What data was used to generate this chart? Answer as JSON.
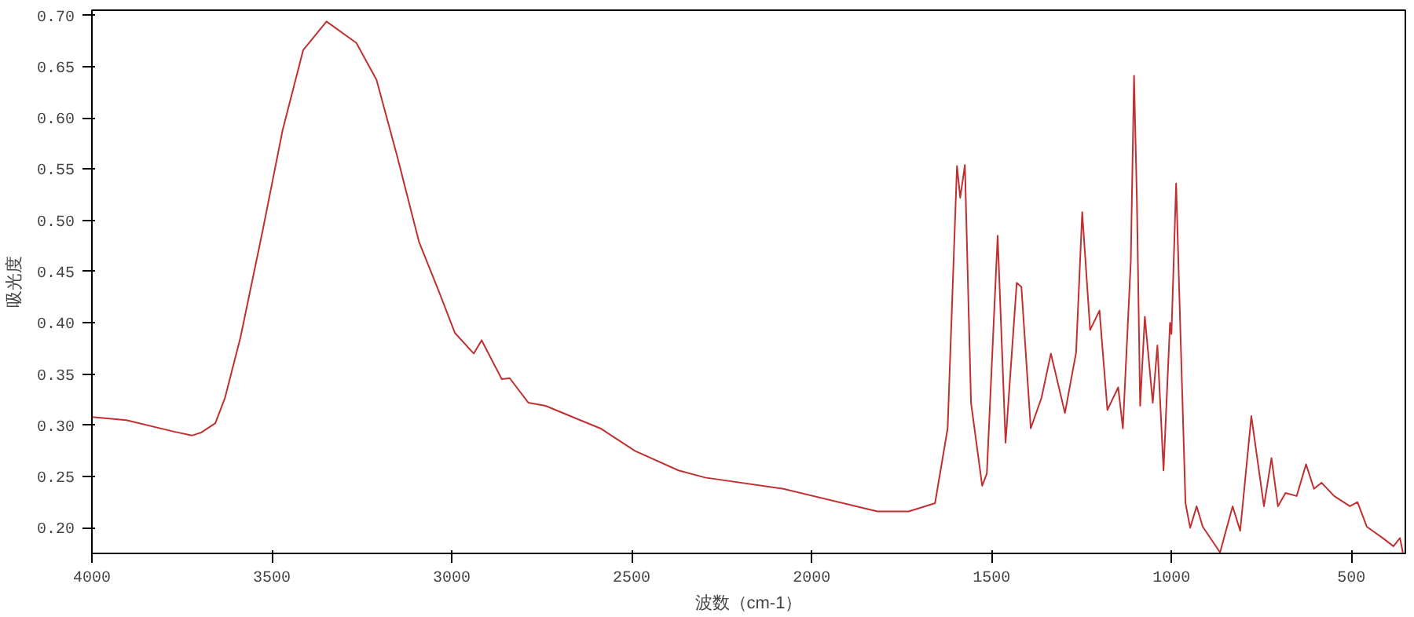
{
  "chart_data": {
    "type": "line",
    "xlabel": "波数（cm-1）",
    "ylabel": "吸光度",
    "xlim": [
      4000,
      350
    ],
    "ylim": [
      0.175,
      0.705
    ],
    "xticks": [
      4000,
      3500,
      3000,
      2500,
      2000,
      1500,
      1000,
      500
    ],
    "yticks": [
      {
        "value": 0.2,
        "label": "0.20"
      },
      {
        "value": 0.25,
        "label": "0.25"
      },
      {
        "value": 0.3,
        "label": "0.30"
      },
      {
        "value": 0.35,
        "label": "0.35"
      },
      {
        "value": 0.4,
        "label": "0.40"
      },
      {
        "value": 0.45,
        "label": "0.45"
      },
      {
        "value": 0.5,
        "label": "0.50"
      },
      {
        "value": 0.55,
        "label": "0.55"
      },
      {
        "value": 0.6,
        "label": "0.60"
      },
      {
        "value": 0.65,
        "label": "0.65"
      },
      {
        "value": 0.7,
        "label": "0.70"
      }
    ],
    "grid": false,
    "marker": "none",
    "line_style": "solid",
    "series": [
      {
        "color": "#c03030",
        "x": [
          4000,
          3904,
          3774,
          3722,
          3696,
          3657,
          3630,
          3587,
          3526,
          3470,
          3413,
          3348,
          3265,
          3209,
          3152,
          3091,
          3035,
          2991,
          2939,
          2917,
          2861,
          2839,
          2787,
          2739,
          2643,
          2587,
          2491,
          2370,
          2296,
          2078,
          1817,
          1730,
          1657,
          1622,
          1596,
          1587,
          1574,
          1557,
          1526,
          1513,
          1483,
          1461,
          1430,
          1417,
          1391,
          1361,
          1335,
          1296,
          1265,
          1248,
          1226,
          1200,
          1178,
          1148,
          1135,
          1113,
          1104,
          1096,
          1087,
          1074,
          1052,
          1039,
          1022,
          1004,
          1000,
          987,
          978,
          961,
          948,
          930,
          913,
          865,
          830,
          809,
          778,
          743,
          722,
          704,
          683,
          652,
          626,
          604,
          583,
          548,
          504,
          483,
          457,
          413,
          383,
          365,
          357
        ],
        "values": [
          0.308,
          0.305,
          0.294,
          0.29,
          0.293,
          0.302,
          0.327,
          0.386,
          0.489,
          0.588,
          0.666,
          0.694,
          0.673,
          0.637,
          0.563,
          0.479,
          0.43,
          0.39,
          0.37,
          0.383,
          0.345,
          0.346,
          0.322,
          0.319,
          0.305,
          0.297,
          0.275,
          0.256,
          0.249,
          0.238,
          0.216,
          0.216,
          0.224,
          0.297,
          0.553,
          0.522,
          0.554,
          0.322,
          0.241,
          0.253,
          0.485,
          0.283,
          0.439,
          0.435,
          0.297,
          0.327,
          0.37,
          0.312,
          0.371,
          0.508,
          0.393,
          0.412,
          0.315,
          0.337,
          0.297,
          0.46,
          0.641,
          0.519,
          0.319,
          0.406,
          0.322,
          0.378,
          0.256,
          0.4,
          0.389,
          0.536,
          0.426,
          0.224,
          0.2,
          0.221,
          0.201,
          0.176,
          0.221,
          0.197,
          0.309,
          0.221,
          0.268,
          0.221,
          0.234,
          0.231,
          0.262,
          0.238,
          0.244,
          0.231,
          0.221,
          0.225,
          0.201,
          0.19,
          0.182,
          0.19,
          0.176
        ]
      }
    ]
  }
}
